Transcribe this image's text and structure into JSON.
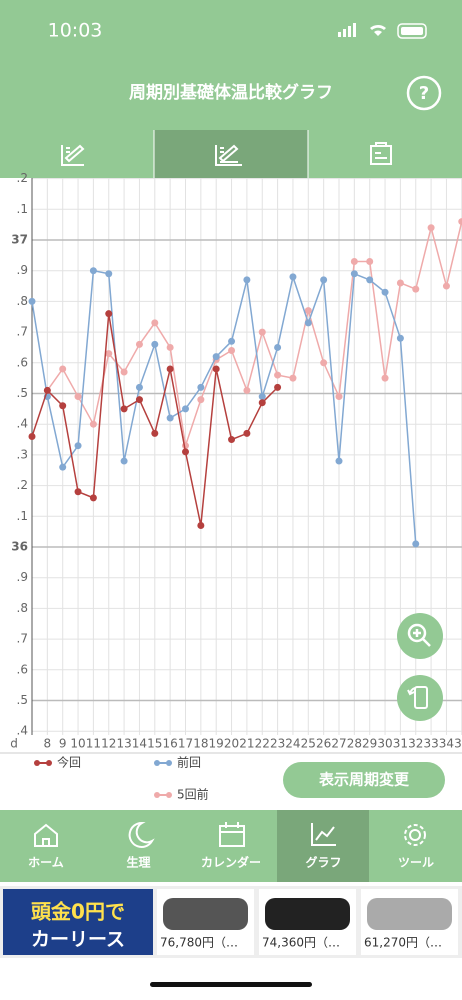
{
  "status_bar": {
    "time": "10:03"
  },
  "header": {
    "title": "周期別基礎体温比較グラフ",
    "help": "?"
  },
  "chart_data": {
    "type": "line",
    "x_label": "d",
    "x": [
      7,
      8,
      9,
      10,
      11,
      12,
      13,
      14,
      15,
      16,
      17,
      18,
      19,
      20,
      21,
      22,
      23,
      24,
      25,
      26,
      27,
      28,
      29,
      30,
      31,
      32,
      33,
      34,
      35
    ],
    "xlim": [
      7,
      35
    ],
    "xticks": [
      8,
      9,
      10,
      11,
      12,
      13,
      14,
      15,
      16,
      17,
      18,
      19,
      20,
      21,
      22,
      23,
      24,
      25,
      26,
      27,
      28,
      29,
      30,
      31,
      32,
      33,
      34,
      35
    ],
    "ylim": [
      35.4,
      37.2
    ],
    "yticks": [
      {
        "value": 37.2,
        "label": ".2"
      },
      {
        "value": 37.1,
        "label": ".1"
      },
      37,
      {
        "value": 36.9,
        "label": ".9"
      },
      {
        "value": 36.8,
        "label": ".8"
      },
      {
        "value": 36.7,
        "label": ".7"
      },
      {
        "value": 36.6,
        "label": ".6"
      },
      {
        "value": 36.5,
        "label": ".5"
      },
      {
        "value": 36.4,
        "label": ".4"
      },
      {
        "value": 36.3,
        "label": ".3"
      },
      {
        "value": 36.2,
        "label": ".2"
      },
      {
        "value": 36.1,
        "label": ".1"
      },
      36,
      {
        "value": 35.9,
        "label": ".9"
      },
      {
        "value": 35.8,
        "label": ".8"
      },
      {
        "value": 35.7,
        "label": ".7"
      },
      {
        "value": 35.6,
        "label": ".6"
      },
      {
        "value": 35.5,
        "label": ".5"
      },
      {
        "value": 35.4,
        "label": ".4"
      }
    ],
    "grid": true,
    "series": [
      {
        "name": "今回",
        "color": "#b5403e",
        "values": [
          36.36,
          36.51,
          36.46,
          36.18,
          36.16,
          36.76,
          36.45,
          36.48,
          36.37,
          36.58,
          36.31,
          36.07,
          36.58,
          36.35,
          36.37,
          36.47,
          36.52,
          null,
          null,
          null,
          null,
          null,
          null,
          null,
          null,
          null,
          null,
          null,
          null
        ]
      },
      {
        "name": "前回",
        "color": "#82a8d2",
        "values": [
          36.8,
          36.49,
          36.26,
          36.33,
          36.9,
          36.89,
          36.28,
          36.52,
          36.66,
          36.42,
          36.45,
          36.52,
          36.62,
          36.67,
          36.87,
          36.49,
          36.65,
          36.88,
          36.73,
          36.87,
          36.28,
          36.89,
          36.87,
          36.83,
          36.68,
          36.01,
          null,
          null,
          null
        ]
      },
      {
        "name": "5回前",
        "color": "#efaaaa",
        "values": [
          null,
          36.51,
          36.58,
          36.49,
          36.4,
          36.63,
          36.57,
          36.66,
          36.73,
          36.65,
          36.33,
          36.48,
          36.61,
          36.64,
          36.51,
          36.7,
          36.56,
          36.55,
          36.77,
          36.6,
          36.49,
          36.93,
          36.93,
          36.55,
          36.86,
          36.84,
          37.04,
          36.85,
          37.06
        ]
      }
    ]
  },
  "button": "表示周期変更",
  "nav": [
    "ホーム",
    "生理",
    "カレンダー",
    "グラフ",
    "ツール"
  ],
  "ads": {
    "headline": "頭金0円で",
    "subline": "カーリース",
    "prices": [
      "76,780円（…",
      "74,360円（…",
      "61,270円（…"
    ]
  }
}
